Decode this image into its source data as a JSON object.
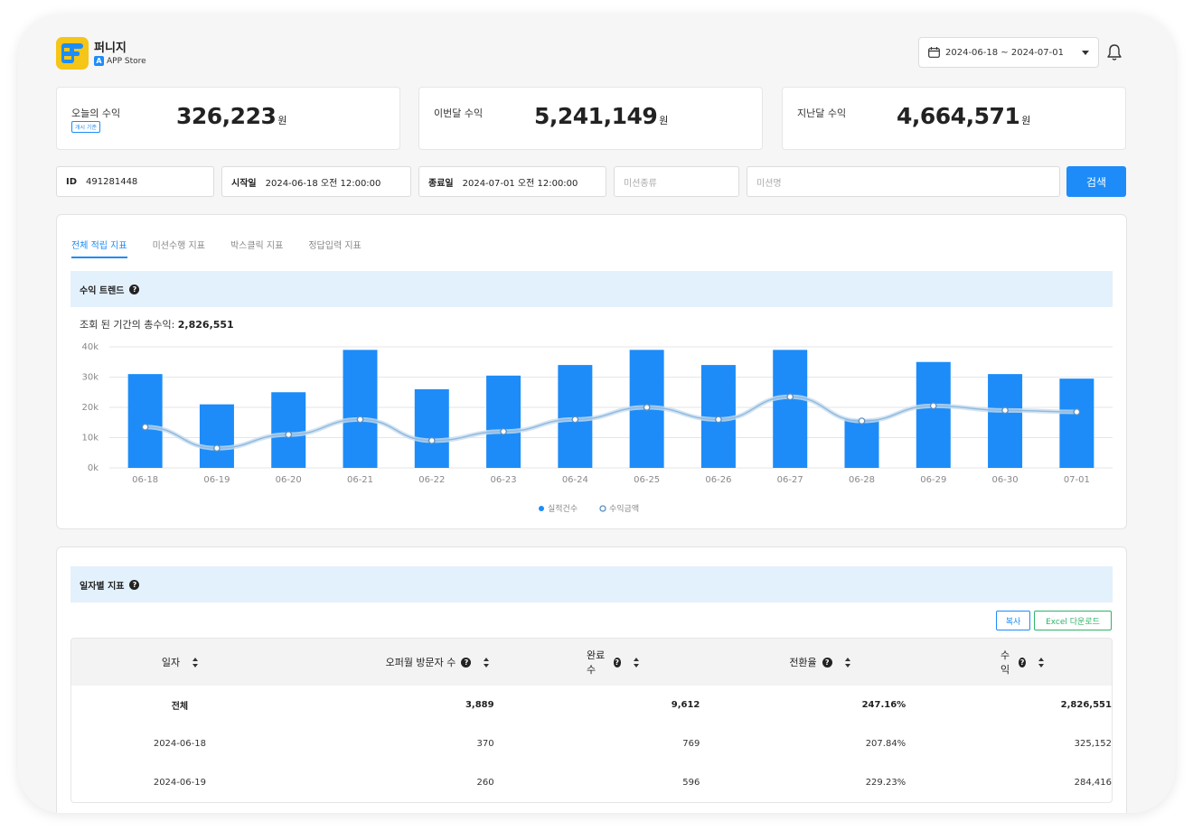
{
  "header": {
    "app_name": "퍼니지",
    "store": "APP Store",
    "date_range": "2024-06-18 ~ 2024-07-01"
  },
  "stats": [
    {
      "label": "오늘의 수익",
      "tag": "개시 기준",
      "value": "326,223",
      "unit": "원"
    },
    {
      "label": "이번달 수익",
      "value": "5,241,149",
      "unit": "원"
    },
    {
      "label": "지난달 수익",
      "value": "4,664,571",
      "unit": "원"
    }
  ],
  "filters": {
    "id_label": "ID",
    "id_value": "491281448",
    "start_label": "시작일",
    "start_value": "2024-06-18 오전 12:00:00",
    "end_label": "종료일",
    "end_value": "2024-07-01 오전 12:00:00",
    "mission_type_placeholder": "미션종류",
    "mission_name_placeholder": "미션명",
    "search_label": "검색"
  },
  "tabs": [
    "전체 적립 지표",
    "미션수행 지표",
    "박스클릭 지표",
    "정답입력 지표"
  ],
  "trend": {
    "title": "수익 트렌드",
    "total_label": "조회 된 기간의 총수익:",
    "total_value": "2,826,551"
  },
  "chart_data": {
    "type": "bar",
    "categories": [
      "06-18",
      "06-19",
      "06-20",
      "06-21",
      "06-22",
      "06-23",
      "06-24",
      "06-25",
      "06-26",
      "06-27",
      "06-28",
      "06-29",
      "06-30",
      "07-01"
    ],
    "y_ticks": [
      "40k",
      "30k",
      "20k",
      "10k",
      "0k"
    ],
    "ylim": [
      0,
      40000
    ],
    "grid": true,
    "legend_position": "bottom-center",
    "series": [
      {
        "name": "실적건수",
        "type": "bar",
        "color": "#1d8cf8",
        "values": [
          31000,
          21000,
          25000,
          39000,
          26000,
          30500,
          34000,
          39000,
          34000,
          39000,
          16000,
          35000,
          31000,
          29500
        ]
      },
      {
        "name": "수익금액",
        "type": "line",
        "color": "#9dc4e6",
        "values": [
          13500,
          6500,
          11000,
          16000,
          9000,
          12000,
          16000,
          20000,
          16000,
          23500,
          15500,
          20500,
          19000,
          18500
        ]
      }
    ]
  },
  "daily": {
    "title": "일자별 지표",
    "copy_label": "복사",
    "excel_label": "Excel 다운로드",
    "columns": [
      "일자",
      "오퍼월 방문자 수",
      "완료수",
      "전환율",
      "수익"
    ],
    "rows": [
      [
        "전체",
        "3,889",
        "9,612",
        "247.16%",
        "2,826,551"
      ],
      [
        "2024-06-18",
        "370",
        "769",
        "207.84%",
        "325,152"
      ],
      [
        "2024-06-19",
        "260",
        "596",
        "229.23%",
        "284,416"
      ]
    ]
  }
}
